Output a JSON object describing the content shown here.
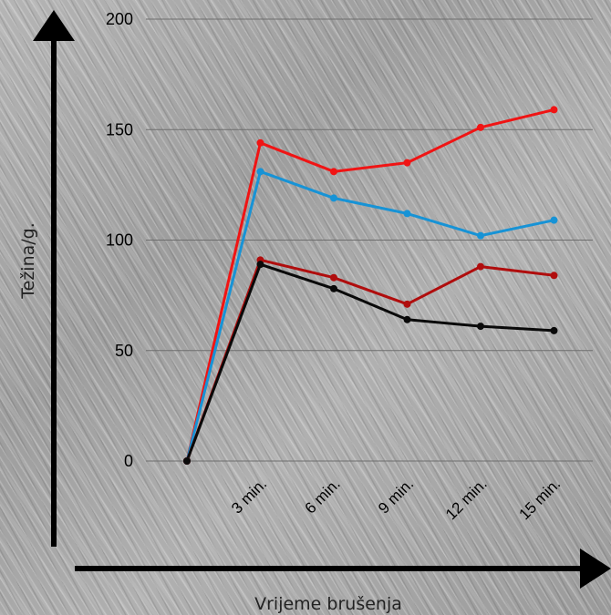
{
  "chart_data": {
    "type": "line",
    "title": "",
    "xlabel": "Vrijeme brušenja",
    "ylabel": "Težina/g.",
    "categories": [
      "",
      "3 min.",
      "6 min.",
      "9 min.",
      "12 min.",
      "15 min."
    ],
    "ylim": [
      0,
      200
    ],
    "yticks": [
      "0",
      "50",
      "100",
      "150",
      "200"
    ],
    "grid": true,
    "series": [
      {
        "color": "#f01414",
        "values": [
          0,
          144,
          131,
          135,
          151,
          159
        ]
      },
      {
        "color": "#1793d6",
        "values": [
          0,
          131,
          119,
          112,
          102,
          109
        ]
      },
      {
        "color": "#b00d0d",
        "values": [
          0,
          91,
          83,
          71,
          88,
          84
        ]
      },
      {
        "color": "#0a0a0a",
        "values": [
          0,
          89,
          78,
          64,
          61,
          59
        ]
      }
    ]
  }
}
